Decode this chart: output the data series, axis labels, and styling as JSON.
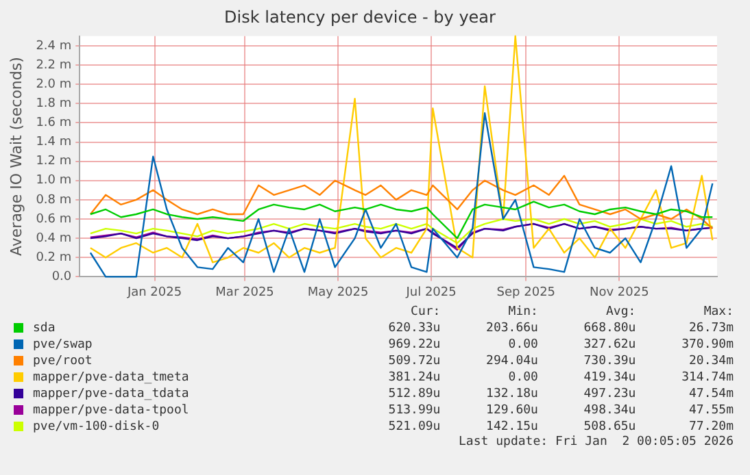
{
  "chart_data": {
    "type": "line",
    "title": "Disk latency per device - by year",
    "ylabel": "Average IO Wait (seconds)",
    "x": [
      "2024-11-20",
      "2024-11-30",
      "2024-12-10",
      "2024-12-20",
      "2024-12-31",
      "2025-01-09",
      "2025-01-19",
      "2025-01-29",
      "2025-02-08",
      "2025-02-18",
      "2025-02-28",
      "2025-03-10",
      "2025-03-20",
      "2025-03-30",
      "2025-04-09",
      "2025-04-19",
      "2025-04-29",
      "2025-05-12",
      "2025-05-19",
      "2025-05-29",
      "2025-06-08",
      "2025-06-18",
      "2025-06-28",
      "2025-07-02",
      "2025-07-18",
      "2025-07-28",
      "2025-08-05",
      "2025-08-17",
      "2025-08-25",
      "2025-09-06",
      "2025-09-16",
      "2025-09-26",
      "2025-10-06",
      "2025-10-16",
      "2025-10-26",
      "2025-11-05",
      "2025-11-15",
      "2025-11-25",
      "2025-12-05",
      "2025-12-15",
      "2025-12-25",
      "2026-01-01"
    ],
    "series": [
      {
        "name": "sda",
        "color": "#00cc00",
        "values": [
          0.65,
          0.7,
          0.62,
          0.65,
          0.7,
          0.65,
          0.62,
          0.6,
          0.62,
          0.6,
          0.58,
          0.7,
          0.75,
          0.72,
          0.7,
          0.75,
          0.68,
          0.72,
          0.7,
          0.75,
          0.7,
          0.68,
          0.72,
          0.65,
          0.4,
          0.7,
          0.75,
          0.72,
          0.7,
          0.78,
          0.72,
          0.75,
          0.68,
          0.65,
          0.7,
          0.72,
          0.68,
          0.65,
          0.7,
          0.68,
          0.62,
          0.62
        ]
      },
      {
        "name": "pve/swap",
        "color": "#0066b3",
        "values": [
          0.25,
          0,
          0,
          0,
          1.25,
          0.7,
          0.3,
          0.1,
          0.08,
          0.3,
          0.15,
          0.6,
          0.05,
          0.5,
          0.05,
          0.6,
          0.1,
          0.4,
          0.7,
          0.3,
          0.55,
          0.1,
          0.05,
          0.5,
          0.2,
          0.5,
          1.7,
          0.6,
          0.8,
          0.1,
          0.08,
          0.05,
          0.6,
          0.3,
          0.25,
          0.4,
          0.15,
          0.6,
          1.15,
          0.3,
          0.5,
          0.97
        ]
      },
      {
        "name": "pve/root",
        "color": "#ff8000",
        "values": [
          0.65,
          0.85,
          0.75,
          0.8,
          0.9,
          0.8,
          0.7,
          0.65,
          0.7,
          0.65,
          0.65,
          0.95,
          0.85,
          0.9,
          0.95,
          0.85,
          1.0,
          0.9,
          0.85,
          0.95,
          0.8,
          0.9,
          0.85,
          0.95,
          0.7,
          0.9,
          1.0,
          0.9,
          0.85,
          0.95,
          0.85,
          1.05,
          0.75,
          0.7,
          0.65,
          0.7,
          0.6,
          0.65,
          0.6,
          0.7,
          0.6,
          0.5
        ]
      },
      {
        "name": "mapper/pve-data_tmeta",
        "color": "#ffcc00",
        "values": [
          0.3,
          0.2,
          0.3,
          0.35,
          0.25,
          0.3,
          0.2,
          0.55,
          0.15,
          0.2,
          0.3,
          0.25,
          0.35,
          0.2,
          0.3,
          0.25,
          0.3,
          1.85,
          0.4,
          0.2,
          0.3,
          0.25,
          0.5,
          1.75,
          0.3,
          0.2,
          1.98,
          0.6,
          2.5,
          0.3,
          0.5,
          0.25,
          0.4,
          0.2,
          0.5,
          0.3,
          0.6,
          0.9,
          0.3,
          0.35,
          1.05,
          0.38
        ]
      },
      {
        "name": "mapper/pve-data_tdata",
        "color": "#330099",
        "values": [
          0.4,
          0.42,
          0.45,
          0.4,
          0.45,
          0.42,
          0.4,
          0.38,
          0.42,
          0.4,
          0.42,
          0.45,
          0.48,
          0.45,
          0.5,
          0.48,
          0.45,
          0.5,
          0.47,
          0.45,
          0.48,
          0.45,
          0.5,
          0.45,
          0.3,
          0.45,
          0.5,
          0.48,
          0.52,
          0.55,
          0.5,
          0.55,
          0.5,
          0.52,
          0.48,
          0.5,
          0.52,
          0.5,
          0.5,
          0.48,
          0.5,
          0.51
        ]
      },
      {
        "name": "mapper/pve-data-tpool",
        "color": "#990099",
        "values": [
          0.41,
          0.43,
          0.45,
          0.41,
          0.46,
          0.42,
          0.41,
          0.39,
          0.43,
          0.4,
          0.42,
          0.46,
          0.48,
          0.46,
          0.5,
          0.48,
          0.46,
          0.5,
          0.48,
          0.46,
          0.48,
          0.46,
          0.5,
          0.46,
          0.28,
          0.46,
          0.5,
          0.49,
          0.52,
          0.55,
          0.51,
          0.55,
          0.5,
          0.52,
          0.49,
          0.5,
          0.52,
          0.5,
          0.51,
          0.48,
          0.5,
          0.51
        ]
      },
      {
        "name": "pve/vm-100-disk-0",
        "color": "#ccff00",
        "values": [
          0.45,
          0.5,
          0.48,
          0.45,
          0.5,
          0.48,
          0.45,
          0.42,
          0.48,
          0.45,
          0.47,
          0.5,
          0.55,
          0.5,
          0.55,
          0.52,
          0.5,
          0.55,
          0.52,
          0.5,
          0.55,
          0.5,
          0.55,
          0.5,
          0.35,
          0.5,
          0.55,
          0.6,
          0.58,
          0.6,
          0.55,
          0.6,
          0.55,
          0.58,
          0.52,
          0.55,
          0.6,
          0.55,
          0.58,
          0.52,
          0.55,
          0.52
        ]
      }
    ],
    "xlim": [
      "2024-11-13",
      "2026-01-04"
    ],
    "xticks": [
      {
        "value": "2025-01-01",
        "label": "Jan 2025"
      },
      {
        "value": "2025-03-01",
        "label": "Mar 2025"
      },
      {
        "value": "2025-05-01",
        "label": "May 2025"
      },
      {
        "value": "2025-07-01",
        "label": "Jul 2025"
      },
      {
        "value": "2025-09-01",
        "label": "Sep 2025"
      },
      {
        "value": "2025-11-01",
        "label": "Nov 2025"
      }
    ],
    "ylim": [
      0,
      2.5
    ],
    "yticks": [
      {
        "value": 0,
        "label": "0.0"
      },
      {
        "value": 0.2,
        "label": "0.2 m"
      },
      {
        "value": 0.4,
        "label": "0.4 m"
      },
      {
        "value": 0.6,
        "label": "0.6 m"
      },
      {
        "value": 0.8,
        "label": "0.8 m"
      },
      {
        "value": 1.0,
        "label": "1.0 m"
      },
      {
        "value": 1.2,
        "label": "1.2 m"
      },
      {
        "value": 1.4,
        "label": "1.4 m"
      },
      {
        "value": 1.6,
        "label": "1.6 m"
      },
      {
        "value": 1.8,
        "label": "1.8 m"
      },
      {
        "value": 2.0,
        "label": "2.0 m"
      },
      {
        "value": 2.2,
        "label": "2.2 m"
      },
      {
        "value": 2.4,
        "label": "2.4 m"
      }
    ],
    "grid": true,
    "legend": "bottom",
    "marker": "none",
    "line_style": "solid",
    "annotations": [
      "Cur:",
      "Min:",
      "Avg:",
      "Max:",
      "620.33u",
      "203.66u",
      "668.80u",
      "26.73m",
      "969.22u",
      "0.00",
      "327.62u",
      "370.90m",
      "509.72u",
      "294.04u",
      "730.39u",
      "20.34m",
      "381.24u",
      "0.00",
      "419.34u",
      "314.74m",
      "512.89u",
      "132.18u",
      "497.23u",
      "47.54m",
      "513.99u",
      "129.60u",
      "498.34u",
      "47.55m",
      "521.09u",
      "142.15u",
      "508.65u",
      "77.20m",
      "Last update: Fri Jan  2 00:05:05 2026"
    ]
  }
}
